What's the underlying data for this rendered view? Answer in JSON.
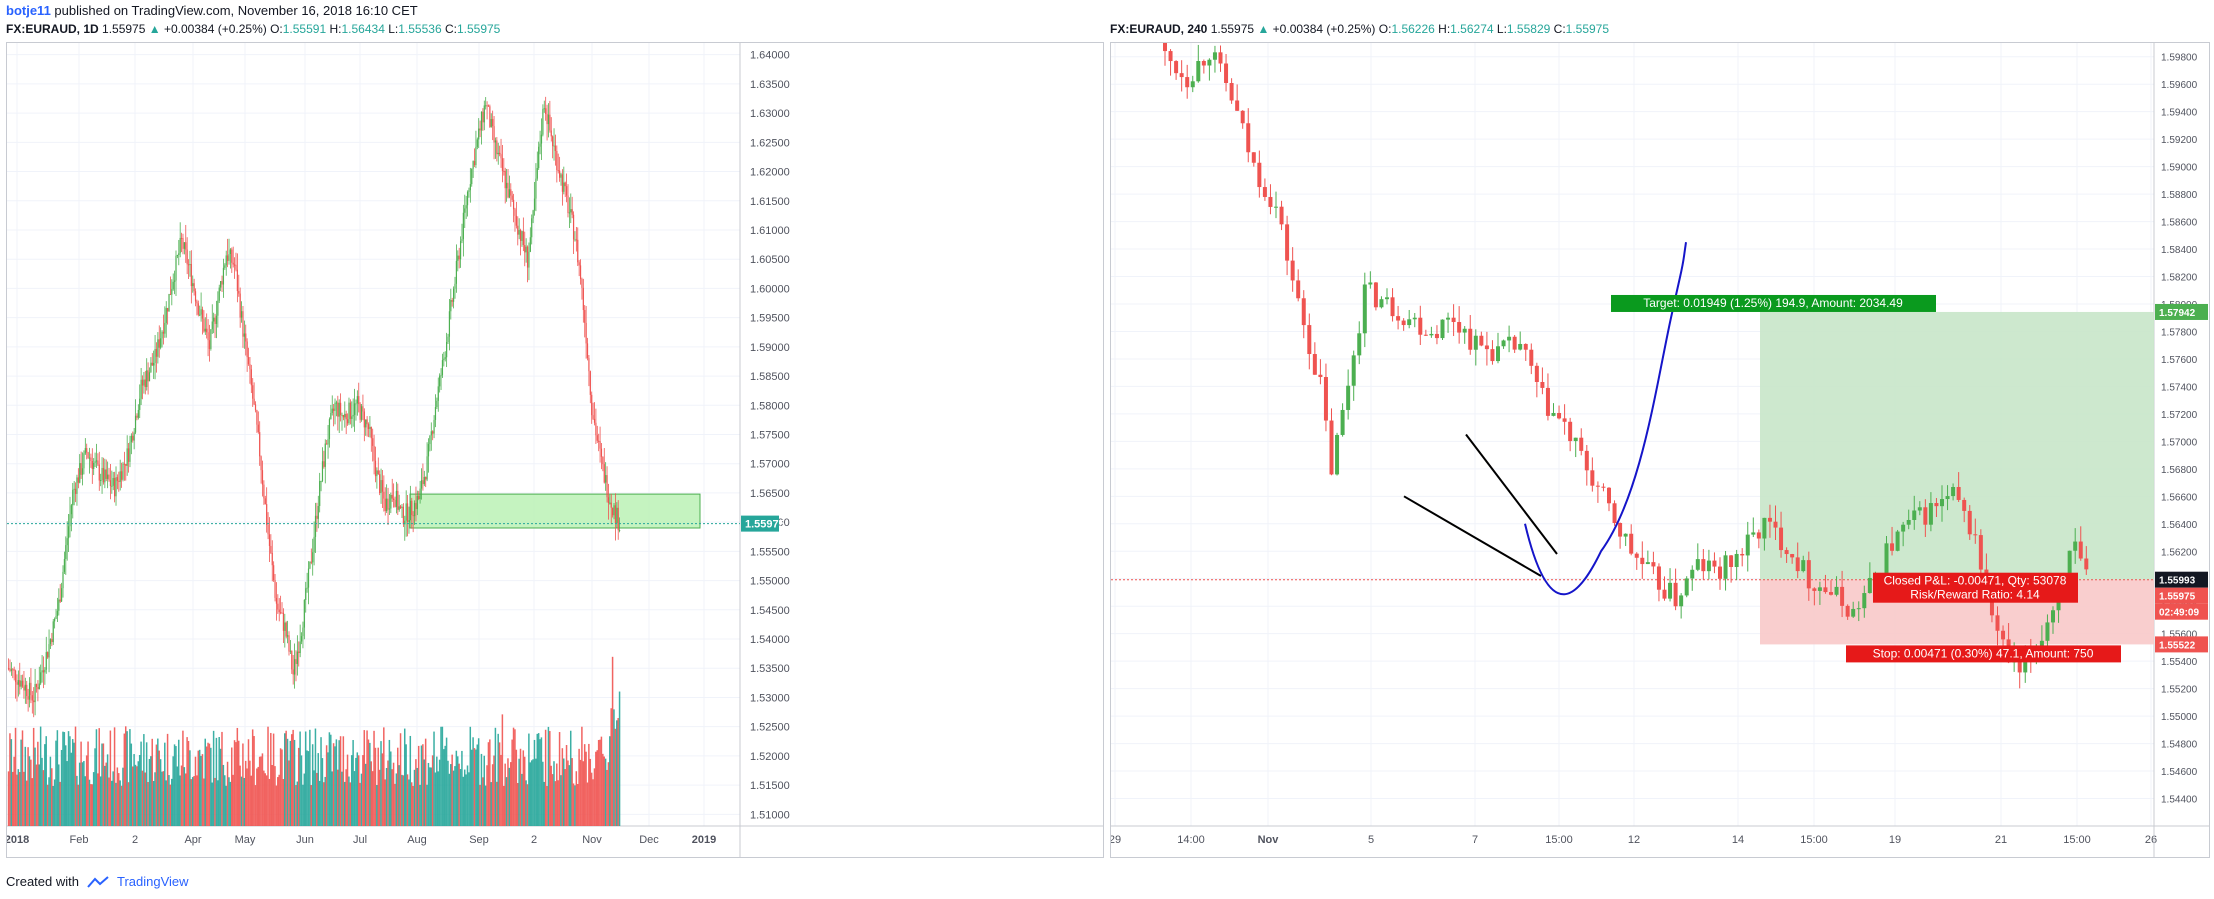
{
  "publish": {
    "author": "botje11",
    "text": "published on TradingView.com, November 16, 2018 16:10 CET"
  },
  "left_header": {
    "symbol": "FX:EURAUD, 1D",
    "last": "1.55975",
    "change": "+0.00384 (+0.25%)",
    "o_label": "O:",
    "o": "1.55591",
    "h_label": "H:",
    "h": "1.56434",
    "l_label": "L:",
    "l": "1.55536",
    "c_label": "C:",
    "c": "1.55975"
  },
  "right_header": {
    "symbol": "FX:EURAUD, 240",
    "last": "1.55975",
    "change": "+0.00384 (+0.25%)",
    "o_label": "O:",
    "o": "1.56226",
    "h_label": "H:",
    "h": "1.56274",
    "l_label": "L:",
    "l": "1.55829",
    "c_label": "C:",
    "c": "1.55975"
  },
  "footer": {
    "created": "Created with",
    "brand": "TradingView"
  },
  "colors": {
    "up": "#26a69a",
    "down": "#ef5350",
    "up_candle": "#4caf50",
    "zone_fill": "#b7f0b0",
    "zone_border": "#4caf50",
    "target_fill": "#c8e6c9",
    "stop_fill": "#f8c9c9",
    "curve": "#1515c9",
    "grid": "#f0f3fa"
  },
  "chart_data": [
    {
      "type": "candlestick",
      "title": "FX:EURAUD, 1D",
      "ylim": [
        1.508,
        1.642
      ],
      "y_ticks": [
        "1.64000",
        "1.63500",
        "1.63000",
        "1.62500",
        "1.62000",
        "1.61500",
        "1.61000",
        "1.60500",
        "1.60000",
        "1.59500",
        "1.59000",
        "1.58500",
        "1.58000",
        "1.57500",
        "1.57000",
        "1.56500",
        "1.56000",
        "1.55500",
        "1.55000",
        "1.54500",
        "1.54000",
        "1.53500",
        "1.53000",
        "1.52500",
        "1.52000",
        "1.51500",
        "1.51000"
      ],
      "x_ticks": [
        "2018",
        "Feb",
        "2",
        "Apr",
        "May",
        "Jun",
        "Jul",
        "Aug",
        "Sep",
        "2",
        "Nov",
        "Dec",
        "2019"
      ],
      "last_price_label": "1.55975",
      "last_price": 1.55975,
      "support_zone": [
        1.559,
        1.5648
      ],
      "closes_keypoints": [
        [
          0,
          1.535
        ],
        [
          8,
          1.533
        ],
        [
          18,
          1.53
        ],
        [
          28,
          1.538
        ],
        [
          36,
          1.546
        ],
        [
          46,
          1.565
        ],
        [
          56,
          1.572
        ],
        [
          66,
          1.568
        ],
        [
          76,
          1.566
        ],
        [
          86,
          1.572
        ],
        [
          95,
          1.583
        ],
        [
          105,
          1.588
        ],
        [
          112,
          1.595
        ],
        [
          118,
          1.602
        ],
        [
          124,
          1.608
        ],
        [
          130,
          1.603
        ],
        [
          136,
          1.597
        ],
        [
          144,
          1.59
        ],
        [
          150,
          1.598
        ],
        [
          156,
          1.606
        ],
        [
          162,
          1.604
        ],
        [
          168,
          1.593
        ],
        [
          174,
          1.583
        ],
        [
          180,
          1.572
        ],
        [
          186,
          1.558
        ],
        [
          192,
          1.546
        ],
        [
          198,
          1.542
        ],
        [
          204,
          1.534
        ],
        [
          210,
          1.542
        ],
        [
          216,
          1.552
        ],
        [
          222,
          1.564
        ],
        [
          228,
          1.574
        ],
        [
          234,
          1.58
        ],
        [
          240,
          1.578
        ],
        [
          250,
          1.58
        ],
        [
          258,
          1.576
        ],
        [
          264,
          1.568
        ],
        [
          270,
          1.563
        ],
        [
          276,
          1.565
        ],
        [
          282,
          1.561
        ],
        [
          288,
          1.562
        ],
        [
          294,
          1.564
        ],
        [
          300,
          1.57
        ],
        [
          306,
          1.58
        ],
        [
          312,
          1.588
        ],
        [
          318,
          1.598
        ],
        [
          324,
          1.608
        ],
        [
          330,
          1.618
        ],
        [
          336,
          1.625
        ],
        [
          342,
          1.632
        ],
        [
          348,
          1.625
        ],
        [
          354,
          1.62
        ],
        [
          360,
          1.615
        ],
        [
          366,
          1.61
        ],
        [
          372,
          1.605
        ],
        [
          376,
          1.612
        ],
        [
          380,
          1.623
        ],
        [
          384,
          1.632
        ],
        [
          388,
          1.627
        ],
        [
          394,
          1.621
        ],
        [
          400,
          1.615
        ],
        [
          406,
          1.609
        ],
        [
          410,
          1.602
        ],
        [
          414,
          1.592
        ],
        [
          418,
          1.58
        ],
        [
          422,
          1.574
        ],
        [
          426,
          1.569
        ],
        [
          430,
          1.565
        ],
        [
          434,
          1.562
        ],
        [
          438,
          1.5598
        ]
      ],
      "volume_note": "histogram at bottom, colored by candle direction"
    },
    {
      "type": "candlestick",
      "title": "FX:EURAUD, 240",
      "ylim": [
        1.542,
        1.599
      ],
      "y_ticks": [
        "1.59800",
        "1.59600",
        "1.59400",
        "1.59200",
        "1.59000",
        "1.58800",
        "1.58600",
        "1.58400",
        "1.58200",
        "1.58000",
        "1.57800",
        "1.57600",
        "1.57400",
        "1.57200",
        "1.57000",
        "1.56800",
        "1.56600",
        "1.56400",
        "1.56200",
        "1.56000",
        "1.55800",
        "1.55600",
        "1.55400",
        "1.55200",
        "1.55000",
        "1.54800",
        "1.54600",
        "1.54400"
      ],
      "x_ticks": [
        "29",
        "14:00",
        "Nov",
        "5",
        "7",
        "15:00",
        "12",
        "14",
        "15:00",
        "19",
        "21",
        "15:00",
        "26"
      ],
      "price_labels": [
        {
          "label": "1.57942",
          "value": 1.57942,
          "color": "#4caf50"
        },
        {
          "label": "1.55993",
          "value": 1.55993,
          "color": "#131722"
        },
        {
          "label": "1.55975",
          "value": 1.55975,
          "color": "#ef5350"
        },
        {
          "label": "02:49:09",
          "value": 1.5579,
          "color": "#ef5350"
        },
        {
          "label": "1.55522",
          "value": 1.55522,
          "color": "#ef5350"
        }
      ],
      "target_label": "Target: 0.01949 (1.25%) 194.9, Amount: 2034.49",
      "stop_label": "Stop: 0.00471 (0.30%) 47.1, Amount: 750",
      "pnl_label": "Closed P&L: -0.00471, Qty: 53078",
      "rr_label": "Risk/Reward Ratio: 4.14",
      "entry": 1.55993,
      "target": 1.57942,
      "stop": 1.55522,
      "closes_keypoints": [
        [
          0,
          1.598
        ],
        [
          4,
          1.5965
        ],
        [
          8,
          1.5985
        ],
        [
          12,
          1.595
        ],
        [
          16,
          1.59
        ],
        [
          20,
          1.587
        ],
        [
          24,
          1.58
        ],
        [
          28,
          1.574
        ],
        [
          30,
          1.568
        ],
        [
          32,
          1.572
        ],
        [
          36,
          1.581
        ],
        [
          40,
          1.58
        ],
        [
          44,
          1.579
        ],
        [
          48,
          1.578
        ],
        [
          52,
          1.579
        ],
        [
          56,
          1.577
        ],
        [
          60,
          1.5765
        ],
        [
          64,
          1.577
        ],
        [
          68,
          1.573
        ],
        [
          72,
          1.571
        ],
        [
          76,
          1.568
        ],
        [
          80,
          1.565
        ],
        [
          84,
          1.562
        ],
        [
          88,
          1.56
        ],
        [
          92,
          1.5585
        ],
        [
          96,
          1.561
        ],
        [
          100,
          1.5605
        ],
        [
          104,
          1.562
        ],
        [
          108,
          1.564
        ],
        [
          112,
          1.5625
        ],
        [
          116,
          1.56
        ],
        [
          120,
          1.559
        ],
        [
          124,
          1.5575
        ],
        [
          128,
          1.56
        ],
        [
          130,
          1.562
        ],
        [
          134,
          1.564
        ],
        [
          138,
          1.565
        ],
        [
          142,
          1.566
        ],
        [
          146,
          1.563
        ],
        [
          148,
          1.559
        ],
        [
          150,
          1.556
        ],
        [
          152,
          1.554
        ],
        [
          154,
          1.553
        ],
        [
          156,
          1.5545
        ],
        [
          158,
          1.556
        ],
        [
          160,
          1.558
        ],
        [
          162,
          1.561
        ],
        [
          164,
          1.562
        ],
        [
          166,
          1.5598
        ]
      ]
    }
  ]
}
